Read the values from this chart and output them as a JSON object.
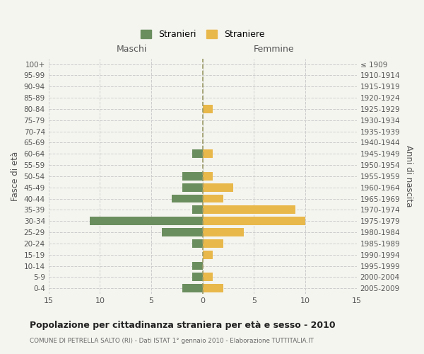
{
  "age_groups": [
    "100+",
    "95-99",
    "90-94",
    "85-89",
    "80-84",
    "75-79",
    "70-74",
    "65-69",
    "60-64",
    "55-59",
    "50-54",
    "45-49",
    "40-44",
    "35-39",
    "30-34",
    "25-29",
    "20-24",
    "15-19",
    "10-14",
    "5-9",
    "0-4"
  ],
  "birth_years": [
    "≤ 1909",
    "1910-1914",
    "1915-1919",
    "1920-1924",
    "1925-1929",
    "1930-1934",
    "1935-1939",
    "1940-1944",
    "1945-1949",
    "1950-1954",
    "1955-1959",
    "1960-1964",
    "1965-1969",
    "1970-1974",
    "1975-1979",
    "1980-1984",
    "1985-1989",
    "1990-1994",
    "1995-1999",
    "2000-2004",
    "2005-2009"
  ],
  "males": [
    0,
    0,
    0,
    0,
    0,
    0,
    0,
    0,
    1,
    0,
    2,
    2,
    3,
    1,
    11,
    4,
    1,
    0,
    1,
    1,
    2
  ],
  "females": [
    0,
    0,
    0,
    0,
    1,
    0,
    0,
    0,
    1,
    0,
    1,
    3,
    2,
    9,
    10,
    4,
    2,
    1,
    0,
    1,
    2
  ],
  "male_color": "#6b8e5e",
  "female_color": "#e8b84b",
  "background_color": "#f5f5f0",
  "grid_color": "#cccccc",
  "dashed_line_color": "#999966",
  "xlim": 15,
  "title": "Popolazione per cittadinanza straniera per età e sesso - 2010",
  "subtitle": "COMUNE DI PETRELLA SALTO (RI) - Dati ISTAT 1° gennaio 2010 - Elaborazione TUTTITALIA.IT",
  "ylabel_left": "Fasce di età",
  "ylabel_right": "Anni di nascita",
  "legend_stranieri": "Stranieri",
  "legend_straniere": "Straniere",
  "header_maschi": "Maschi",
  "header_femmine": "Femmine"
}
